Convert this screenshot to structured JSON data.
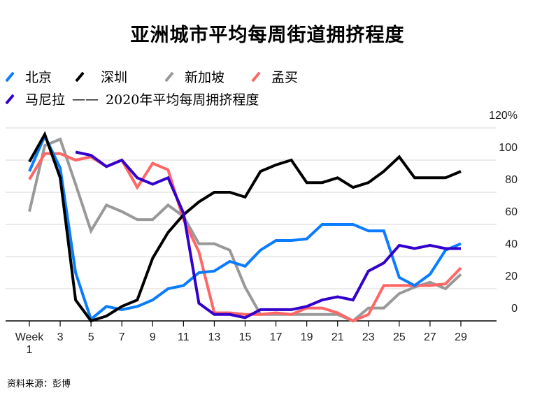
{
  "chart_data": {
    "type": "line",
    "title": "亚洲城市平均每周街道拥挤程度",
    "legend_note": "2020年平均每周拥挤程度",
    "source": "资料来源：彭博",
    "xlabel": "Week",
    "x_first_label": "Week",
    "x_ticks": [
      1,
      3,
      5,
      7,
      9,
      11,
      13,
      15,
      17,
      19,
      21,
      23,
      25,
      27,
      29
    ],
    "x_tick_labels": [
      "1",
      "3",
      "5",
      "7",
      "9",
      "11",
      "13",
      "15",
      "17",
      "19",
      "21",
      "23",
      "25",
      "27",
      "29"
    ],
    "xlim": [
      1,
      29
    ],
    "ylim": [
      0,
      120
    ],
    "y_ticks": [
      0,
      20,
      40,
      60,
      80,
      100,
      120
    ],
    "y_tick_labels": [
      "0",
      "20",
      "40",
      "60",
      "80",
      "100",
      "120%"
    ],
    "grid": true,
    "y_axis_side": "right",
    "legend_placement": "top-left",
    "series": [
      {
        "name": "北京",
        "color": "#0a7cff",
        "start_week": 1,
        "values": [
          93,
          115,
          95,
          30,
          1,
          9,
          7,
          9,
          13,
          20,
          22,
          30,
          31,
          37,
          34,
          44,
          50,
          50,
          51,
          60,
          60,
          60,
          56,
          56,
          27,
          22,
          29,
          44,
          48
        ]
      },
      {
        "name": "深圳",
        "color": "#000000",
        "start_week": 1,
        "values": [
          99,
          116,
          89,
          13,
          0,
          3,
          9,
          13,
          39,
          55,
          66,
          74,
          80,
          80,
          77,
          93,
          97,
          100,
          86,
          86,
          89,
          83,
          86,
          93,
          102,
          89,
          89,
          89,
          93
        ]
      },
      {
        "name": "新加坡",
        "color": "#999999",
        "start_week": 1,
        "values": [
          68,
          109,
          113,
          85,
          56,
          72,
          68,
          63,
          63,
          72,
          65,
          48,
          48,
          44,
          21,
          4,
          4,
          4,
          4,
          4,
          4,
          0,
          8,
          8,
          17,
          21,
          24,
          20,
          29
        ]
      },
      {
        "name": "孟买",
        "color": "#ff6666",
        "start_week": 1,
        "values": [
          88,
          104,
          104,
          100,
          102,
          96,
          100,
          83,
          98,
          94,
          63,
          43,
          5,
          5,
          4,
          4,
          5,
          4,
          8,
          8,
          5,
          0,
          4,
          22,
          22,
          22,
          22,
          23,
          33
        ]
      },
      {
        "name": "马尼拉",
        "color": "#3300cc",
        "start_week": 4,
        "values": [
          105,
          103,
          96,
          100,
          89,
          85,
          89,
          67,
          11,
          4,
          4,
          2,
          7,
          7,
          7,
          9,
          13,
          15,
          13,
          31,
          36,
          47,
          45,
          47,
          45,
          45
        ]
      }
    ]
  }
}
